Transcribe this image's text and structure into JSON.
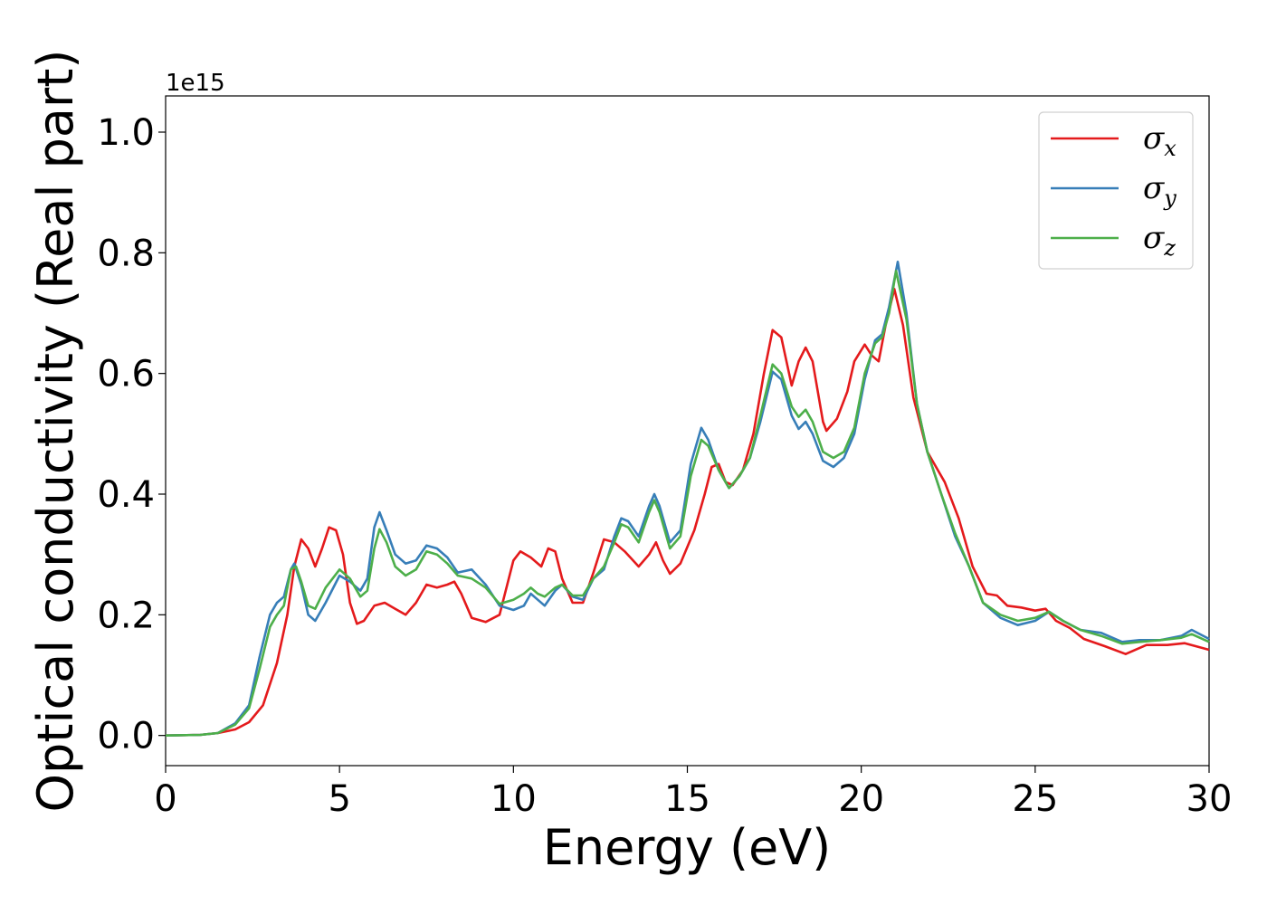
{
  "chart_data": {
    "type": "line",
    "xlabel": "Energy (eV)",
    "ylabel": "Optical conductivity (Real part)",
    "offset_text": "1e15",
    "xlim": [
      0,
      30
    ],
    "ylim": [
      -0.05,
      1.06
    ],
    "xticks": [
      0,
      5,
      10,
      15,
      20,
      25,
      30
    ],
    "xtick_labels": [
      "0",
      "5",
      "10",
      "15",
      "20",
      "25",
      "30"
    ],
    "yticks": [
      0.0,
      0.2,
      0.4,
      0.6,
      0.8,
      1.0
    ],
    "ytick_labels": [
      "0.0",
      "0.2",
      "0.4",
      "0.6",
      "0.8",
      "1.0"
    ],
    "grid": false,
    "legend_position": "top-right",
    "series": [
      {
        "name": "σx",
        "symbol": "σ",
        "subscript": "x",
        "color": "#e41a1c",
        "points": [
          [
            0,
            0
          ],
          [
            1,
            0.001
          ],
          [
            1.5,
            0.004
          ],
          [
            2,
            0.01
          ],
          [
            2.4,
            0.022
          ],
          [
            2.8,
            0.05
          ],
          [
            3.2,
            0.12
          ],
          [
            3.5,
            0.2
          ],
          [
            3.7,
            0.28
          ],
          [
            3.9,
            0.325
          ],
          [
            4.1,
            0.31
          ],
          [
            4.3,
            0.28
          ],
          [
            4.5,
            0.31
          ],
          [
            4.7,
            0.345
          ],
          [
            4.9,
            0.34
          ],
          [
            5.1,
            0.3
          ],
          [
            5.3,
            0.22
          ],
          [
            5.5,
            0.185
          ],
          [
            5.7,
            0.19
          ],
          [
            6.0,
            0.215
          ],
          [
            6.3,
            0.22
          ],
          [
            6.6,
            0.21
          ],
          [
            6.9,
            0.2
          ],
          [
            7.2,
            0.22
          ],
          [
            7.5,
            0.25
          ],
          [
            7.8,
            0.245
          ],
          [
            8.1,
            0.25
          ],
          [
            8.3,
            0.255
          ],
          [
            8.5,
            0.235
          ],
          [
            8.8,
            0.195
          ],
          [
            9.2,
            0.188
          ],
          [
            9.6,
            0.2
          ],
          [
            10.0,
            0.29
          ],
          [
            10.2,
            0.305
          ],
          [
            10.5,
            0.295
          ],
          [
            10.8,
            0.28
          ],
          [
            11.0,
            0.31
          ],
          [
            11.2,
            0.305
          ],
          [
            11.4,
            0.26
          ],
          [
            11.7,
            0.22
          ],
          [
            12.0,
            0.22
          ],
          [
            12.3,
            0.27
          ],
          [
            12.6,
            0.325
          ],
          [
            12.9,
            0.32
          ],
          [
            13.2,
            0.305
          ],
          [
            13.6,
            0.28
          ],
          [
            13.9,
            0.3
          ],
          [
            14.1,
            0.32
          ],
          [
            14.3,
            0.29
          ],
          [
            14.5,
            0.268
          ],
          [
            14.8,
            0.285
          ],
          [
            15.2,
            0.34
          ],
          [
            15.5,
            0.4
          ],
          [
            15.7,
            0.445
          ],
          [
            15.9,
            0.45
          ],
          [
            16.1,
            0.42
          ],
          [
            16.3,
            0.415
          ],
          [
            16.6,
            0.44
          ],
          [
            16.9,
            0.5
          ],
          [
            17.2,
            0.6
          ],
          [
            17.45,
            0.672
          ],
          [
            17.7,
            0.66
          ],
          [
            18.0,
            0.58
          ],
          [
            18.2,
            0.62
          ],
          [
            18.4,
            0.643
          ],
          [
            18.6,
            0.62
          ],
          [
            18.9,
            0.52
          ],
          [
            19.0,
            0.505
          ],
          [
            19.3,
            0.525
          ],
          [
            19.6,
            0.57
          ],
          [
            19.8,
            0.62
          ],
          [
            20.1,
            0.648
          ],
          [
            20.3,
            0.63
          ],
          [
            20.5,
            0.62
          ],
          [
            20.7,
            0.68
          ],
          [
            20.95,
            0.74
          ],
          [
            21.2,
            0.68
          ],
          [
            21.5,
            0.56
          ],
          [
            21.9,
            0.47
          ],
          [
            22.4,
            0.42
          ],
          [
            22.8,
            0.36
          ],
          [
            23.2,
            0.28
          ],
          [
            23.6,
            0.235
          ],
          [
            23.9,
            0.232
          ],
          [
            24.2,
            0.215
          ],
          [
            24.6,
            0.212
          ],
          [
            25.0,
            0.207
          ],
          [
            25.3,
            0.21
          ],
          [
            25.6,
            0.19
          ],
          [
            26.0,
            0.178
          ],
          [
            26.4,
            0.16
          ],
          [
            27.0,
            0.148
          ],
          [
            27.6,
            0.135
          ],
          [
            28.2,
            0.15
          ],
          [
            28.8,
            0.15
          ],
          [
            29.3,
            0.153
          ],
          [
            30.0,
            0.142
          ]
        ]
      },
      {
        "name": "σy",
        "symbol": "σ",
        "subscript": "y",
        "color": "#377eb8",
        "points": [
          [
            0,
            0
          ],
          [
            1,
            0.001
          ],
          [
            1.5,
            0.004
          ],
          [
            2,
            0.02
          ],
          [
            2.4,
            0.05
          ],
          [
            2.7,
            0.13
          ],
          [
            3.0,
            0.2
          ],
          [
            3.2,
            0.22
          ],
          [
            3.4,
            0.23
          ],
          [
            3.6,
            0.275
          ],
          [
            3.7,
            0.285
          ],
          [
            3.9,
            0.25
          ],
          [
            4.1,
            0.2
          ],
          [
            4.3,
            0.19
          ],
          [
            4.6,
            0.22
          ],
          [
            5.0,
            0.265
          ],
          [
            5.3,
            0.255
          ],
          [
            5.6,
            0.24
          ],
          [
            5.8,
            0.26
          ],
          [
            6.0,
            0.345
          ],
          [
            6.15,
            0.37
          ],
          [
            6.35,
            0.34
          ],
          [
            6.6,
            0.3
          ],
          [
            6.9,
            0.285
          ],
          [
            7.2,
            0.29
          ],
          [
            7.5,
            0.315
          ],
          [
            7.8,
            0.31
          ],
          [
            8.1,
            0.295
          ],
          [
            8.4,
            0.27
          ],
          [
            8.8,
            0.275
          ],
          [
            9.2,
            0.25
          ],
          [
            9.6,
            0.215
          ],
          [
            10.0,
            0.208
          ],
          [
            10.3,
            0.215
          ],
          [
            10.5,
            0.235
          ],
          [
            10.7,
            0.225
          ],
          [
            10.9,
            0.215
          ],
          [
            11.2,
            0.24
          ],
          [
            11.4,
            0.25
          ],
          [
            11.7,
            0.23
          ],
          [
            12.0,
            0.225
          ],
          [
            12.3,
            0.26
          ],
          [
            12.6,
            0.275
          ],
          [
            12.9,
            0.33
          ],
          [
            13.1,
            0.36
          ],
          [
            13.3,
            0.355
          ],
          [
            13.6,
            0.33
          ],
          [
            13.9,
            0.38
          ],
          [
            14.05,
            0.4
          ],
          [
            14.2,
            0.38
          ],
          [
            14.5,
            0.32
          ],
          [
            14.8,
            0.34
          ],
          [
            15.1,
            0.45
          ],
          [
            15.4,
            0.51
          ],
          [
            15.6,
            0.49
          ],
          [
            15.9,
            0.44
          ],
          [
            16.2,
            0.41
          ],
          [
            16.5,
            0.43
          ],
          [
            16.8,
            0.46
          ],
          [
            17.1,
            0.52
          ],
          [
            17.45,
            0.603
          ],
          [
            17.7,
            0.59
          ],
          [
            18.0,
            0.53
          ],
          [
            18.2,
            0.508
          ],
          [
            18.4,
            0.52
          ],
          [
            18.6,
            0.5
          ],
          [
            18.9,
            0.455
          ],
          [
            19.2,
            0.445
          ],
          [
            19.5,
            0.46
          ],
          [
            19.8,
            0.5
          ],
          [
            20.1,
            0.59
          ],
          [
            20.4,
            0.655
          ],
          [
            20.6,
            0.665
          ],
          [
            20.8,
            0.71
          ],
          [
            21.05,
            0.785
          ],
          [
            21.3,
            0.7
          ],
          [
            21.6,
            0.55
          ],
          [
            21.9,
            0.47
          ],
          [
            22.3,
            0.4
          ],
          [
            22.7,
            0.33
          ],
          [
            23.1,
            0.28
          ],
          [
            23.5,
            0.22
          ],
          [
            24.0,
            0.195
          ],
          [
            24.5,
            0.183
          ],
          [
            25.0,
            0.19
          ],
          [
            25.4,
            0.205
          ],
          [
            25.8,
            0.19
          ],
          [
            26.3,
            0.175
          ],
          [
            26.9,
            0.17
          ],
          [
            27.5,
            0.155
          ],
          [
            28.0,
            0.158
          ],
          [
            28.6,
            0.158
          ],
          [
            29.2,
            0.165
          ],
          [
            29.5,
            0.175
          ],
          [
            30.0,
            0.16
          ]
        ]
      },
      {
        "name": "σz",
        "symbol": "σ",
        "subscript": "z",
        "color": "#4daf4a",
        "points": [
          [
            0,
            0
          ],
          [
            1,
            0.001
          ],
          [
            1.5,
            0.004
          ],
          [
            2,
            0.018
          ],
          [
            2.4,
            0.045
          ],
          [
            2.7,
            0.11
          ],
          [
            3.0,
            0.18
          ],
          [
            3.2,
            0.2
          ],
          [
            3.4,
            0.215
          ],
          [
            3.6,
            0.275
          ],
          [
            3.75,
            0.28
          ],
          [
            3.9,
            0.255
          ],
          [
            4.1,
            0.215
          ],
          [
            4.3,
            0.21
          ],
          [
            4.6,
            0.245
          ],
          [
            5.0,
            0.275
          ],
          [
            5.3,
            0.26
          ],
          [
            5.6,
            0.23
          ],
          [
            5.8,
            0.24
          ],
          [
            6.0,
            0.31
          ],
          [
            6.15,
            0.342
          ],
          [
            6.35,
            0.32
          ],
          [
            6.6,
            0.28
          ],
          [
            6.9,
            0.265
          ],
          [
            7.2,
            0.275
          ],
          [
            7.5,
            0.305
          ],
          [
            7.8,
            0.3
          ],
          [
            8.1,
            0.285
          ],
          [
            8.4,
            0.265
          ],
          [
            8.8,
            0.26
          ],
          [
            9.2,
            0.245
          ],
          [
            9.6,
            0.218
          ],
          [
            10.0,
            0.225
          ],
          [
            10.3,
            0.235
          ],
          [
            10.5,
            0.245
          ],
          [
            10.7,
            0.235
          ],
          [
            10.9,
            0.23
          ],
          [
            11.2,
            0.245
          ],
          [
            11.4,
            0.25
          ],
          [
            11.7,
            0.232
          ],
          [
            12.0,
            0.232
          ],
          [
            12.3,
            0.26
          ],
          [
            12.6,
            0.28
          ],
          [
            12.9,
            0.32
          ],
          [
            13.1,
            0.35
          ],
          [
            13.3,
            0.345
          ],
          [
            13.6,
            0.32
          ],
          [
            13.9,
            0.37
          ],
          [
            14.05,
            0.39
          ],
          [
            14.2,
            0.37
          ],
          [
            14.5,
            0.31
          ],
          [
            14.8,
            0.33
          ],
          [
            15.1,
            0.43
          ],
          [
            15.4,
            0.49
          ],
          [
            15.6,
            0.48
          ],
          [
            15.9,
            0.44
          ],
          [
            16.2,
            0.41
          ],
          [
            16.5,
            0.43
          ],
          [
            16.8,
            0.46
          ],
          [
            17.1,
            0.53
          ],
          [
            17.45,
            0.615
          ],
          [
            17.7,
            0.6
          ],
          [
            18.0,
            0.545
          ],
          [
            18.2,
            0.528
          ],
          [
            18.4,
            0.54
          ],
          [
            18.6,
            0.52
          ],
          [
            18.9,
            0.47
          ],
          [
            19.2,
            0.46
          ],
          [
            19.5,
            0.47
          ],
          [
            19.8,
            0.51
          ],
          [
            20.1,
            0.6
          ],
          [
            20.4,
            0.65
          ],
          [
            20.6,
            0.66
          ],
          [
            20.8,
            0.7
          ],
          [
            21.0,
            0.77
          ],
          [
            21.3,
            0.69
          ],
          [
            21.6,
            0.55
          ],
          [
            21.9,
            0.47
          ],
          [
            22.3,
            0.4
          ],
          [
            22.7,
            0.335
          ],
          [
            23.1,
            0.28
          ],
          [
            23.5,
            0.22
          ],
          [
            24.0,
            0.2
          ],
          [
            24.5,
            0.19
          ],
          [
            25.0,
            0.195
          ],
          [
            25.4,
            0.205
          ],
          [
            25.8,
            0.19
          ],
          [
            26.3,
            0.175
          ],
          [
            26.9,
            0.165
          ],
          [
            27.5,
            0.152
          ],
          [
            28.0,
            0.155
          ],
          [
            28.6,
            0.158
          ],
          [
            29.2,
            0.162
          ],
          [
            29.5,
            0.168
          ],
          [
            30.0,
            0.155
          ]
        ]
      }
    ]
  }
}
